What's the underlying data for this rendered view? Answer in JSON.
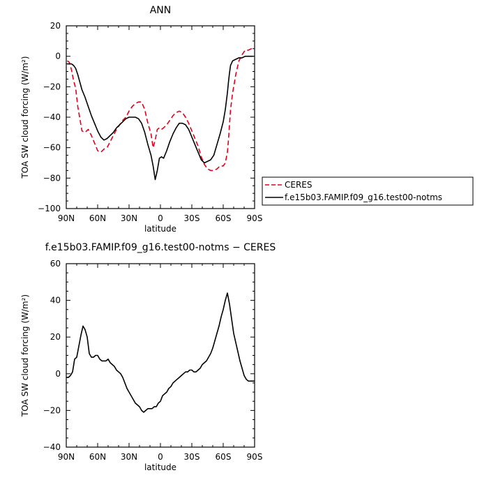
{
  "chart_data": [
    {
      "type": "line",
      "title": "ANN",
      "xlabel": "latitude",
      "ylabel": "TOA SW cloud forcing (W/m²)",
      "xlim": [
        90,
        -90
      ],
      "ylim": [
        -100,
        20
      ],
      "xticks": [
        90,
        60,
        30,
        0,
        -30,
        -60,
        -90
      ],
      "xtick_labels": [
        "90N",
        "60N",
        "30N",
        "0",
        "30S",
        "60S",
        "90S"
      ],
      "yticks": [
        -100,
        -80,
        -60,
        -40,
        -20,
        0,
        20
      ],
      "ytick_labels": [
        "−100",
        "−80",
        "−60",
        "−40",
        "−20",
        "0",
        "20"
      ],
      "grid": false,
      "legend": "right",
      "series": [
        {
          "name": "CERES",
          "color": "#e0001b",
          "dash": "dashed",
          "x": [
            89,
            87,
            85,
            83,
            81,
            79,
            77,
            75,
            72,
            69,
            66,
            63,
            60,
            57,
            54,
            51,
            48,
            45,
            42,
            39,
            36,
            33,
            30,
            27,
            24,
            21,
            18,
            15,
            12,
            9,
            7,
            5,
            3,
            1,
            -1,
            -3,
            -6,
            -9,
            -12,
            -15,
            -18,
            -21,
            -24,
            -27,
            -30,
            -33,
            -36,
            -39,
            -42,
            -45,
            -48,
            -51,
            -54,
            -57,
            -60,
            -62,
            -64,
            -65,
            -66,
            -67,
            -69,
            -72,
            -75,
            -78,
            -81,
            -84,
            -87,
            -89
          ],
          "y": [
            -3,
            -4,
            -9,
            -16,
            -21,
            -33,
            -41,
            -49,
            -50,
            -48,
            -52,
            -57,
            -62,
            -63,
            -61,
            -60,
            -56,
            -52,
            -48,
            -45,
            -42,
            -40,
            -36,
            -33,
            -31,
            -30,
            -30,
            -35,
            -44,
            -51,
            -60,
            -55,
            -48,
            -47,
            -48,
            -47,
            -45,
            -42,
            -39,
            -37,
            -36,
            -37,
            -40,
            -44,
            -49,
            -54,
            -59,
            -66,
            -71,
            -74,
            -75,
            -75,
            -74,
            -72,
            -72,
            -70,
            -63,
            -55,
            -45,
            -35,
            -24,
            -12,
            -3,
            1,
            4,
            4,
            5,
            5
          ]
        },
        {
          "name": "f.e15b03.FAMIP.f09_g16.test00-notms",
          "color": "#000000",
          "dash": "solid",
          "x": [
            89,
            87,
            85,
            83,
            81,
            79,
            77,
            75,
            72,
            69,
            66,
            63,
            60,
            57,
            54,
            51,
            48,
            45,
            42,
            39,
            36,
            33,
            30,
            27,
            24,
            21,
            18,
            15,
            12,
            9,
            7,
            5,
            3,
            1,
            -1,
            -3,
            -6,
            -9,
            -12,
            -15,
            -18,
            -21,
            -24,
            -27,
            -30,
            -33,
            -36,
            -39,
            -42,
            -45,
            -48,
            -51,
            -54,
            -57,
            -60,
            -62,
            -64,
            -65,
            -66,
            -67,
            -69,
            -72,
            -75,
            -78,
            -81,
            -84,
            -87,
            -89
          ],
          "y": [
            -5,
            -5,
            -5,
            -6,
            -8,
            -12,
            -17,
            -22,
            -27,
            -33,
            -39,
            -44,
            -49,
            -53,
            -55,
            -54,
            -52,
            -50,
            -47,
            -45,
            -43,
            -41,
            -40,
            -40,
            -40,
            -41,
            -44,
            -50,
            -58,
            -65,
            -72,
            -81,
            -75,
            -67,
            -66,
            -67,
            -62,
            -56,
            -51,
            -47,
            -44,
            -44,
            -45,
            -48,
            -53,
            -58,
            -63,
            -68,
            -70,
            -69,
            -68,
            -65,
            -58,
            -51,
            -43,
            -35,
            -24,
            -17,
            -11,
            -6,
            -3,
            -2,
            -1,
            -1,
            0,
            0,
            0,
            0
          ]
        }
      ]
    },
    {
      "type": "line",
      "title": "f.e15b03.FAMIP.f09_g16.test00-notms − CERES",
      "xlabel": "latitude",
      "ylabel": "TOA SW cloud forcing (W/m²)",
      "xlim": [
        90,
        -90
      ],
      "ylim": [
        -40,
        60
      ],
      "xticks": [
        90,
        60,
        30,
        0,
        -30,
        -60,
        -90
      ],
      "xtick_labels": [
        "90N",
        "60N",
        "30N",
        "0",
        "30S",
        "60S",
        "90S"
      ],
      "yticks": [
        -40,
        -20,
        0,
        20,
        40,
        60
      ],
      "ytick_labels": [
        "−40",
        "−20",
        "0",
        "20",
        "40",
        "60"
      ],
      "grid": false,
      "series": [
        {
          "color": "#000000",
          "dash": "solid",
          "x": [
            90,
            88,
            86,
            84,
            82,
            80,
            78,
            76,
            74,
            72,
            70,
            68,
            66,
            64,
            62,
            60,
            58,
            56,
            54,
            52,
            50,
            48,
            46,
            44,
            42,
            40,
            38,
            36,
            34,
            32,
            30,
            28,
            26,
            24,
            22,
            20,
            18,
            16,
            14,
            12,
            10,
            8,
            6,
            4,
            2,
            0,
            -2,
            -4,
            -6,
            -8,
            -10,
            -12,
            -14,
            -16,
            -18,
            -20,
            -22,
            -24,
            -26,
            -28,
            -30,
            -32,
            -34,
            -36,
            -38,
            -40,
            -42,
            -44,
            -46,
            -48,
            -50,
            -52,
            -54,
            -56,
            -58,
            -60,
            -62,
            -64,
            -66,
            -68,
            -70,
            -72,
            -74,
            -76,
            -78,
            -80,
            -82,
            -84,
            -86,
            -88,
            -90
          ],
          "y": [
            -2,
            -2,
            -1,
            1,
            8,
            9,
            15,
            21,
            26,
            24,
            20,
            11,
            9,
            9,
            10,
            10,
            8,
            7,
            7,
            7,
            8,
            6,
            5,
            4,
            2,
            1,
            0,
            -2,
            -5,
            -8,
            -10,
            -12,
            -14,
            -16,
            -17,
            -18,
            -20,
            -21,
            -20,
            -19,
            -19,
            -19,
            -18,
            -18,
            -16,
            -15,
            -12,
            -11,
            -10,
            -8,
            -7,
            -5,
            -4,
            -3,
            -2,
            -1,
            0,
            1,
            1,
            2,
            2,
            1,
            1,
            2,
            3,
            5,
            6,
            7,
            9,
            11,
            14,
            18,
            22,
            26,
            31,
            35,
            40,
            44,
            38,
            30,
            22,
            17,
            12,
            7,
            3,
            -1,
            -3,
            -4,
            -4,
            -4,
            -4
          ]
        }
      ]
    }
  ]
}
